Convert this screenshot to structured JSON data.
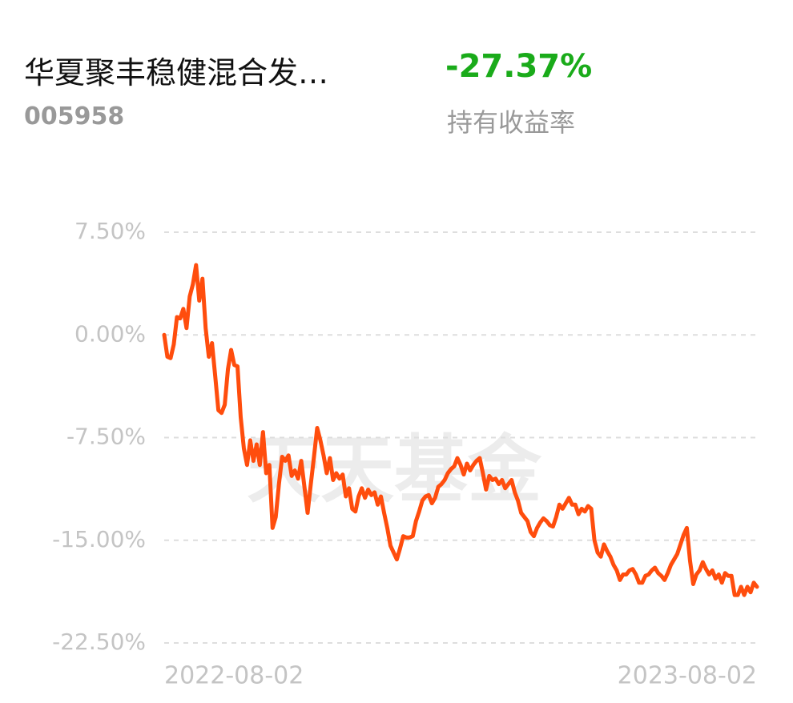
{
  "header": {
    "fund_name": "华夏聚丰稳健混合发…",
    "fund_code": "005958",
    "return_value": "-27.37%",
    "return_label": "持有收益率"
  },
  "chart_data": {
    "type": "line",
    "watermark": "天天基金",
    "color": "#ff4d0d",
    "grid": true,
    "x_labels": [
      "2022-08-02",
      "2023-08-02"
    ],
    "ylim": [
      -22.5,
      7.5
    ],
    "yticks": [
      {
        "value": 7.5,
        "label": "7.50%"
      },
      {
        "value": 0,
        "label": "0.00%"
      },
      {
        "value": -7.5,
        "label": "-7.50%"
      },
      {
        "value": -15,
        "label": "-15.00%"
      },
      {
        "value": -22.5,
        "label": "-22.50%"
      }
    ],
    "values": [
      0,
      -1.6,
      -1.7,
      -0.7,
      1.3,
      1.2,
      1.9,
      0.5,
      2.8,
      3.7,
      5.1,
      2.5,
      4.1,
      0.5,
      -1.6,
      -0.6,
      -3.0,
      -5.5,
      -5.7,
      -5.1,
      -2.5,
      -1.1,
      -2.2,
      -2.3,
      -6.0,
      -8.3,
      -9.5,
      -7.7,
      -9.2,
      -8.0,
      -9.5,
      -7.1,
      -10.1,
      -9.5,
      -14.1,
      -13.3,
      -10.9,
      -8.9,
      -9.2,
      -8.8,
      -10.3,
      -9.9,
      -10.5,
      -9.2,
      -11.1,
      -13.0,
      -10.9,
      -8.9,
      -6.8,
      -7.7,
      -8.8,
      -10.1,
      -9.0,
      -10.6,
      -10.1,
      -10.5,
      -10.2,
      -11.8,
      -11.2,
      -12.7,
      -12.9,
      -11.8,
      -11.2,
      -11.9,
      -11.3,
      -11.7,
      -11.5,
      -12.4,
      -11.8,
      -13.0,
      -14.1,
      -15.4,
      -15.9,
      -16.4,
      -15.6,
      -14.7,
      -14.8,
      -14.8,
      -14.7,
      -13.6,
      -12.9,
      -12.1,
      -11.8,
      -11.7,
      -12.3,
      -11.9,
      -11.1,
      -10.9,
      -10.6,
      -10.1,
      -9.8,
      -9.6,
      -9.0,
      -9.5,
      -10.2,
      -9.4,
      -9.9,
      -9.5,
      -9.2,
      -9.0,
      -10.1,
      -11.3,
      -10.3,
      -10.6,
      -10.5,
      -10.9,
      -10.6,
      -11.2,
      -10.9,
      -10.6,
      -11.5,
      -12.1,
      -13.0,
      -13.3,
      -13.6,
      -14.4,
      -14.7,
      -14.1,
      -13.7,
      -13.4,
      -13.6,
      -13.9,
      -14.0,
      -13.3,
      -12.4,
      -12.7,
      -12.3,
      -11.9,
      -12.4,
      -12.4,
      -13.1,
      -12.7,
      -12.9,
      -12.5,
      -12.7,
      -15.0,
      -15.9,
      -16.2,
      -15.3,
      -15.8,
      -16.2,
      -16.8,
      -17.2,
      -17.9,
      -17.5,
      -17.5,
      -17.2,
      -17.1,
      -17.5,
      -18.1,
      -18.1,
      -17.6,
      -17.5,
      -17.2,
      -17.0,
      -17.4,
      -17.6,
      -17.9,
      -17.4,
      -16.8,
      -16.4,
      -16.0,
      -15.3,
      -14.6,
      -14.1,
      -16.5,
      -18.2,
      -17.5,
      -17.2,
      -16.6,
      -17.1,
      -17.5,
      -17.2,
      -17.8,
      -17.5,
      -18.1,
      -17.4,
      -17.6,
      -17.6,
      -19.0,
      -19.0,
      -18.4,
      -19.0,
      -18.4,
      -18.8,
      -18.1,
      -18.4
    ]
  }
}
